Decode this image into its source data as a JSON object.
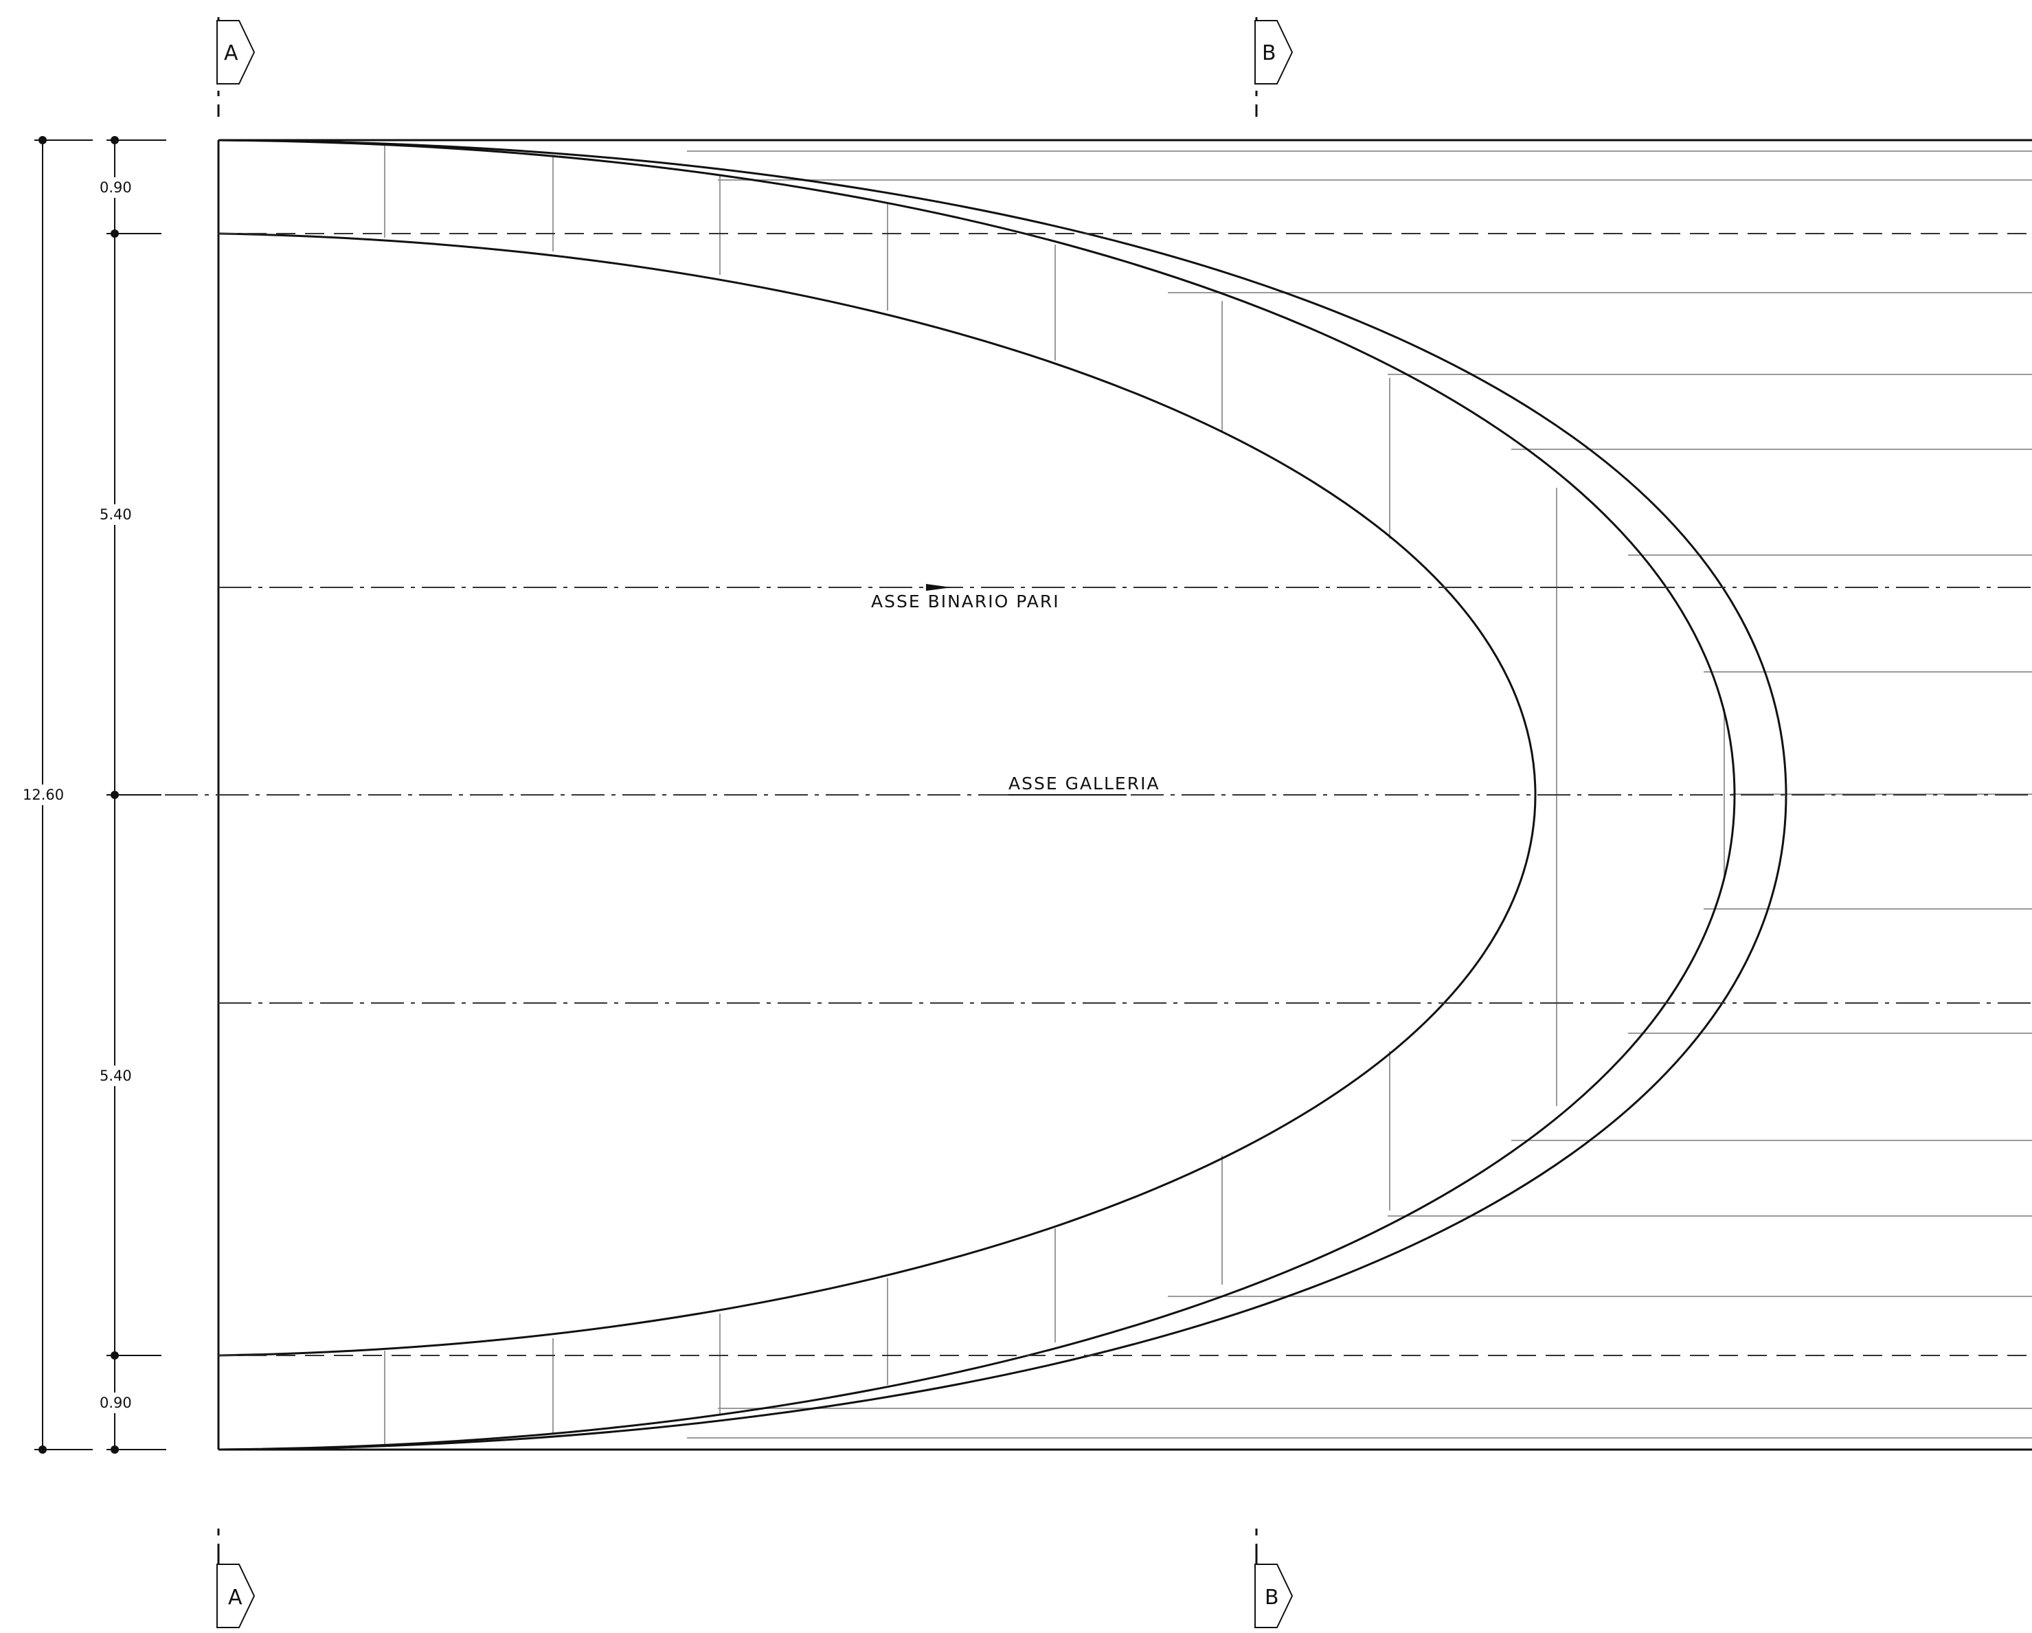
{
  "sections": {
    "a": "A",
    "b": "B"
  },
  "dimensions": {
    "top_clearance": "0.90",
    "upper_half": "5.40",
    "lower_half": "5.40",
    "bottom_clearance": "0.90",
    "total_width": "12.60"
  },
  "axes": {
    "track_axis": "ASSE  BINARIO  PARI",
    "tunnel_axis": "ASSE  GALLERIA"
  },
  "colors": {
    "ink": "#111111",
    "thin_line": "#9a9a9a",
    "paper": "#ffffff"
  }
}
